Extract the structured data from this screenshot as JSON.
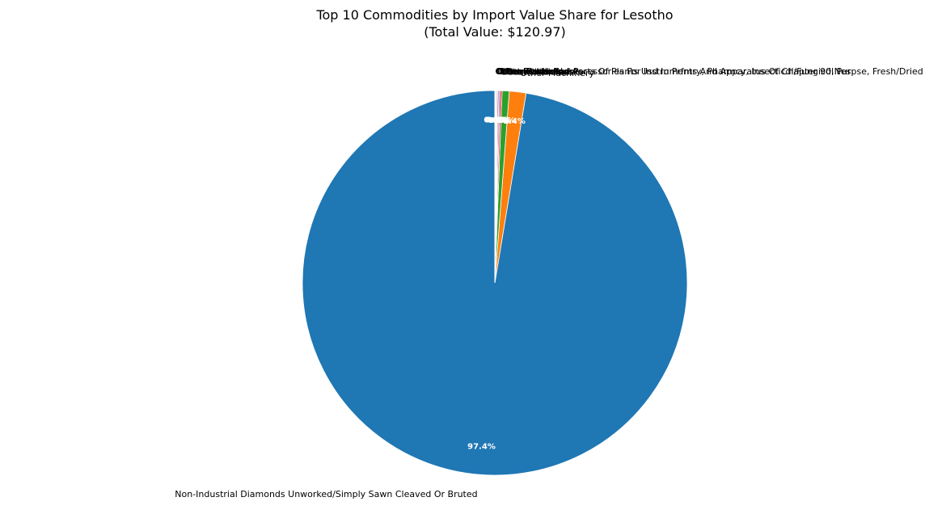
{
  "chart_data": {
    "type": "pie",
    "title": "Top 10 Commodities by Import Value Share for Lesotho",
    "subtitle": "(Total Value: $120.97)",
    "start_angle_deg": 90,
    "direction": "counterclockwise",
    "slices": [
      {
        "label": "Non-Industrial Diamonds Unworked/Simply Sawn Cleaved Or Bruted",
        "value": 97.4,
        "pct_label": "97.4%",
        "color": "#1f77b4"
      },
      {
        "label": "Other Machinery",
        "value": 1.4,
        "pct_label": "1.4%",
        "color": "#ff7f0e"
      },
      {
        "label": "Other Articles",
        "value": 0.6,
        "pct_label": "0.6%",
        "color": "#2ca02c"
      },
      {
        "label": "Other Instruments",
        "value": 0.15,
        "pct_label": "0.1%",
        "color": "#d62728"
      },
      {
        "label": "Other Chemicals",
        "value": 0.12,
        "pct_label": "0.1%",
        "color": "#9467bd"
      },
      {
        "label": "Other Parts And Accessories For Instruments And Apparatus Of Chapter 90,Nes",
        "value": 0.1,
        "pct_label": "0.1%",
        "color": "#8c564b"
      },
      {
        "label": "Other Goods Nes",
        "value": 0.08,
        "pct_label": "0.1%",
        "color": "#e377c2"
      },
      {
        "label": "Other Textiles",
        "value": 0.06,
        "pct_label": "0.1%",
        "color": "#7f7f7f"
      },
      {
        "label": "Other Products",
        "value": 0.05,
        "pct_label": "0.0%",
        "color": "#bcbd22"
      },
      {
        "label": "Other Plants And Parts Of Plants Usd In Prfmry, Pharmcy, Insecticdl/Fungicdl Purpse, Fresh/Dried",
        "value": 0.04,
        "pct_label": "0.0%",
        "color": "#17becf"
      }
    ]
  }
}
